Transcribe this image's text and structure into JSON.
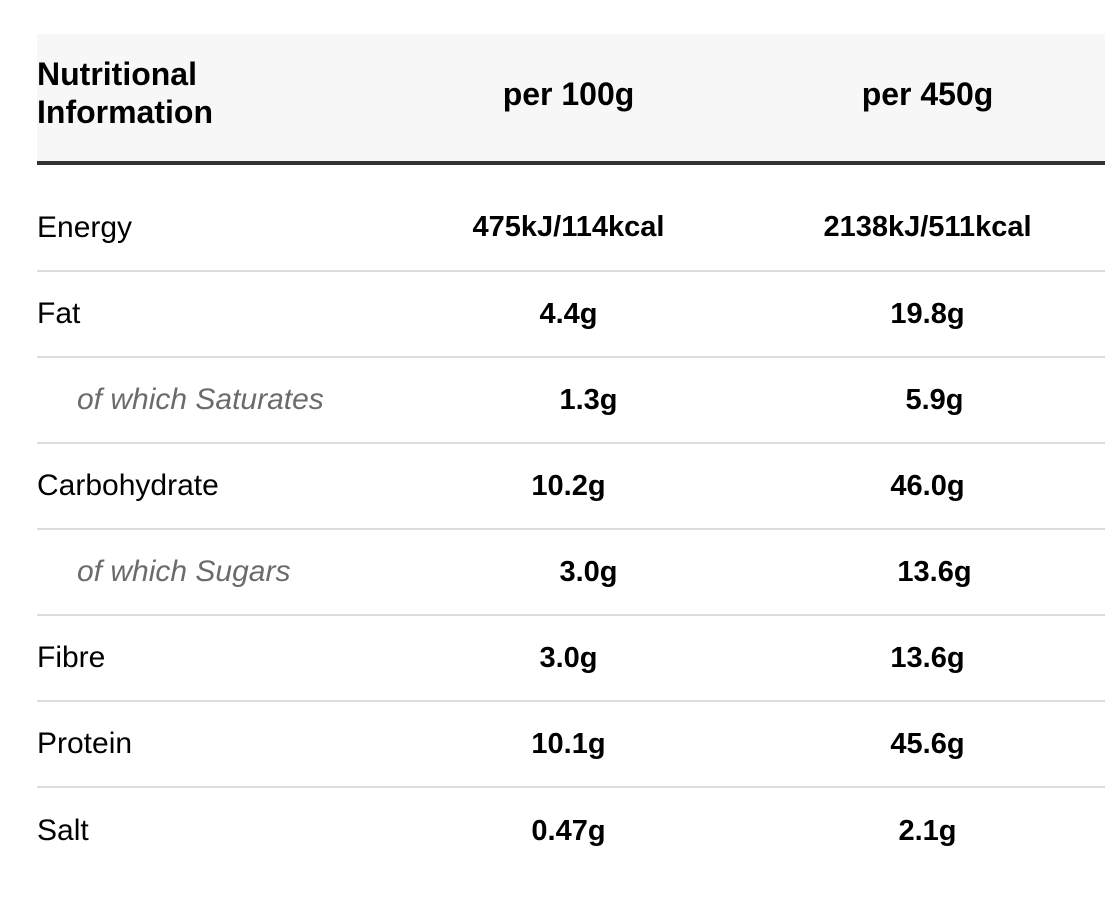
{
  "header": {
    "label_line1": "Nutritional",
    "label_line2": "Information",
    "col1": "per 100g",
    "col2": "per 450g"
  },
  "rows": [
    {
      "label": "Energy",
      "per100": "475kJ/114kcal",
      "per450": "2138kJ/511kcal"
    },
    {
      "label": "Fat",
      "per100": "4.4g",
      "per450": "19.8g"
    },
    {
      "label": "of which Saturates",
      "per100": "1.3g",
      "per450": "5.9g"
    },
    {
      "label": "Carbohydrate",
      "per100": "10.2g",
      "per450": "46.0g"
    },
    {
      "label": "of which Sugars",
      "per100": "3.0g",
      "per450": "13.6g"
    },
    {
      "label": "Fibre",
      "per100": "3.0g",
      "per450": "13.6g"
    },
    {
      "label": "Protein",
      "per100": "10.1g",
      "per450": "45.6g"
    },
    {
      "label": "Salt",
      "per100": "0.47g",
      "per450": "2.1g"
    }
  ]
}
